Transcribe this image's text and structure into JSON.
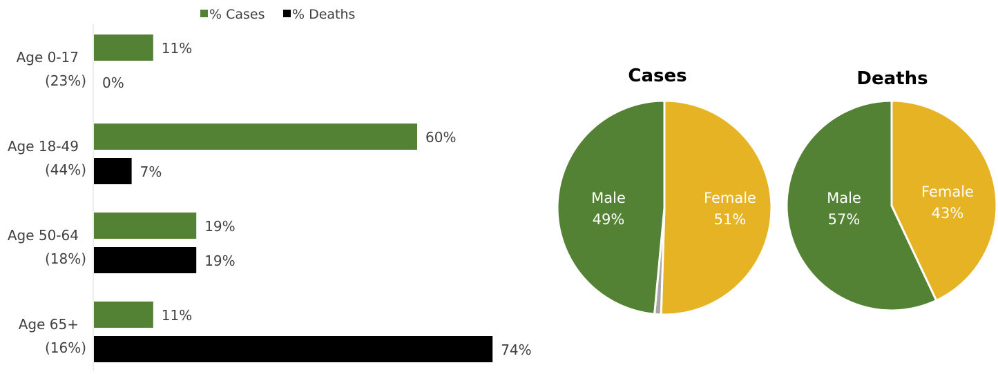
{
  "colors": {
    "cases": "#548235",
    "deaths": "#000000",
    "male": "#548235",
    "female": "#e5b323",
    "other": "#a6a6a6",
    "text": "#404040",
    "axis": "#d9d9d9"
  },
  "chart_data": [
    {
      "type": "bar",
      "orientation": "horizontal",
      "categories": [
        [
          "Age 0-17",
          "(23%)"
        ],
        [
          "Age 18-49",
          "(44%)"
        ],
        [
          "Age 50-64",
          "(18%)"
        ],
        [
          "Age 65+",
          "(16%)"
        ]
      ],
      "series": [
        {
          "name": "% Cases",
          "values": [
            11,
            60,
            19,
            11
          ],
          "labels": [
            "11%",
            "60%",
            "19%",
            "11%"
          ]
        },
        {
          "name": "% Deaths",
          "values": [
            0,
            7,
            19,
            74
          ],
          "labels": [
            "0%",
            "7%",
            "19%",
            "74%"
          ]
        }
      ],
      "legend": "top",
      "grid": false,
      "xlim": [
        0,
        100
      ]
    },
    {
      "type": "pie",
      "title": "Cases",
      "slices": [
        {
          "name": "Female",
          "value": 51,
          "label": "51%"
        },
        {
          "name": "Unknown",
          "value": 1,
          "label": ""
        },
        {
          "name": "Male",
          "value": 49,
          "label": "49%"
        }
      ]
    },
    {
      "type": "pie",
      "title": "Deaths",
      "slices": [
        {
          "name": "Female",
          "value": 43,
          "label": "43%"
        },
        {
          "name": "Male",
          "value": 57,
          "label": "57%"
        }
      ]
    }
  ]
}
